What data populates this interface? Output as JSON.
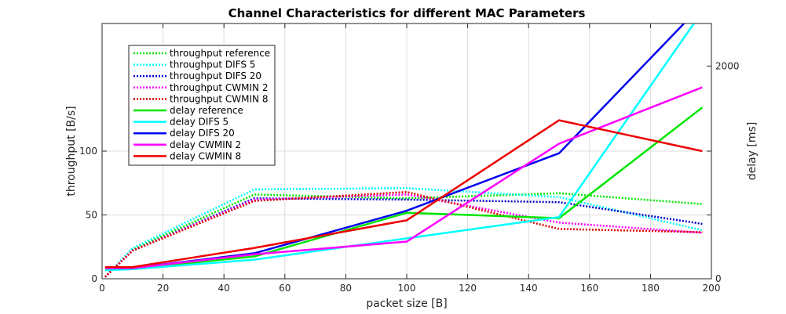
{
  "chart_data": {
    "type": "line",
    "title": "Channel Characteristics for different MAC Parameters",
    "xlabel": "packet size [B]",
    "ylabel_left": "throughput [B/s]",
    "ylabel_right": "delay [ms]",
    "xlim": [
      0,
      200
    ],
    "ylim_left": [
      0,
      200
    ],
    "ylim_right": [
      0,
      2400
    ],
    "xticks": [
      0,
      20,
      40,
      60,
      80,
      100,
      120,
      140,
      160,
      180,
      200
    ],
    "yticks_left": [
      0,
      50,
      100
    ],
    "yticks_right": [
      0,
      2000
    ],
    "grid": true,
    "legend_position": "top-left",
    "series": [
      {
        "name": "throughput reference",
        "axis": "left",
        "style": "dotted",
        "color": "#00e600",
        "x": [
          1,
          10,
          50,
          100,
          150,
          197
        ],
        "y": [
          1.5,
          23,
          66,
          63,
          67,
          58.5
        ]
      },
      {
        "name": "throughput DIFS 5",
        "axis": "left",
        "style": "dotted",
        "color": "#00ffff",
        "x": [
          1,
          10,
          50,
          100,
          150,
          197
        ],
        "y": [
          1.5,
          24,
          70,
          71,
          64,
          38
        ]
      },
      {
        "name": "throughput DIFS 20",
        "axis": "left",
        "style": "dotted",
        "color": "#0000cc",
        "x": [
          1,
          10,
          50,
          100,
          150,
          197
        ],
        "y": [
          1.5,
          22,
          63,
          62,
          60,
          43
        ]
      },
      {
        "name": "throughput CWMIN 2",
        "axis": "left",
        "style": "dotted",
        "color": "#ff00ff",
        "x": [
          1,
          10,
          50,
          100,
          150,
          197
        ],
        "y": [
          1.5,
          22,
          62,
          66,
          44,
          36
        ]
      },
      {
        "name": "throughput CWMIN 8",
        "axis": "left",
        "style": "dotted",
        "color": "#dd0000",
        "x": [
          1,
          10,
          50,
          100,
          150,
          197
        ],
        "y": [
          1.5,
          22,
          61,
          68,
          39,
          36.5
        ]
      },
      {
        "name": "delay reference",
        "axis": "right",
        "style": "solid",
        "color": "#00e600",
        "x": [
          1,
          10,
          50,
          100,
          150,
          197
        ],
        "y": [
          90,
          95,
          210,
          620,
          570,
          1610
        ]
      },
      {
        "name": "delay DIFS 5",
        "axis": "right",
        "style": "solid",
        "color": "#00ffff",
        "x": [
          1,
          10,
          50,
          100,
          150,
          195
        ],
        "y": [
          80,
          90,
          180,
          380,
          580,
          2430
        ]
      },
      {
        "name": "delay DIFS 20",
        "axis": "right",
        "style": "solid",
        "color": "#0000ee",
        "x": [
          1,
          10,
          50,
          100,
          150,
          192
        ],
        "y": [
          100,
          100,
          240,
          640,
          1180,
          2430
        ]
      },
      {
        "name": "delay CWMIN 2",
        "axis": "right",
        "style": "solid",
        "color": "#ff00ff",
        "x": [
          1,
          10,
          50,
          100,
          150,
          197
        ],
        "y": [
          100,
          100,
          230,
          350,
          1270,
          1800
        ]
      },
      {
        "name": "delay CWMIN 8",
        "axis": "right",
        "style": "solid",
        "color": "#ee0000",
        "x": [
          1,
          10,
          50,
          100,
          150,
          197
        ],
        "y": [
          110,
          110,
          290,
          550,
          1490,
          1200
        ]
      }
    ]
  }
}
